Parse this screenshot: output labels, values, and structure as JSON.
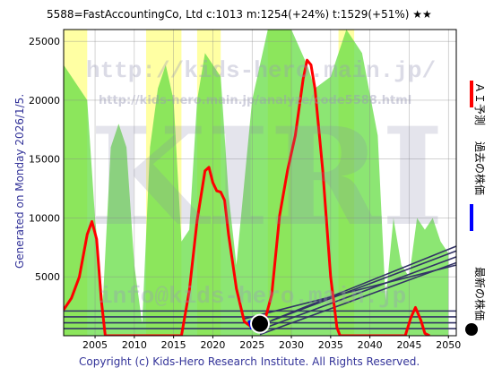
{
  "header": {
    "title": "5588=FastAccountingCo,  Ltd    c:1013  m:1254(+24%)  t:1529(+51%)  ★★"
  },
  "side_note": "Generated on Monday 2026/1/5.",
  "watermarks": {
    "url_big": "http://kids-hero.main.jp/",
    "url_small": "http://kids-hero.main.jp/analyze/code5588.html",
    "logo": "KIRI",
    "email": "info@kids-hero.main.jp"
  },
  "legend": {
    "ai_forecast": "ＡＩ予測",
    "past_price": "過去の株価",
    "latest_price": "最新の株価"
  },
  "copyright": "Copyright (c) Kids-Hero Research Institute. All Rights Reserved.",
  "colors": {
    "forecast_line": "#ff0000",
    "past_line": "#0000ff",
    "latest_marker": "#000000",
    "band_green": "#66dd44",
    "band_yellow": "#ffff99",
    "trend_lines": "#333366"
  },
  "chart_data": {
    "type": "line",
    "xlim": [
      2001,
      2051
    ],
    "ylim": [
      0,
      26000
    ],
    "x_ticks": [
      "2005",
      "2010",
      "2015",
      "2020",
      "2025",
      "2030",
      "2035",
      "2040",
      "2045",
      "2050"
    ],
    "y_ticks": [
      "5000",
      "10000",
      "15000",
      "20000",
      "25000"
    ],
    "grid": true,
    "series": [
      {
        "name": "ＡＩ予測",
        "points": [
          [
            2001,
            2200
          ],
          [
            2002,
            3200
          ],
          [
            2003,
            5000
          ],
          [
            2004,
            8600
          ],
          [
            2004.6,
            9700
          ],
          [
            2005.2,
            8200
          ],
          [
            2005.8,
            3000
          ],
          [
            2006.3,
            0
          ],
          [
            2016,
            0
          ],
          [
            2017,
            3800
          ],
          [
            2018,
            9800
          ],
          [
            2019,
            14000
          ],
          [
            2019.5,
            14300
          ],
          [
            2020,
            13000
          ],
          [
            2020.5,
            12300
          ],
          [
            2021,
            12200
          ],
          [
            2021.5,
            11500
          ],
          [
            2022,
            8600
          ],
          [
            2023,
            4000
          ],
          [
            2024,
            1200
          ],
          [
            2025,
            700
          ],
          [
            2025.5,
            600
          ],
          [
            2026.5,
            1000
          ],
          [
            2027.5,
            3500
          ],
          [
            2028.5,
            10200
          ],
          [
            2029.5,
            14000
          ],
          [
            2030.5,
            17000
          ],
          [
            2031.5,
            21800
          ],
          [
            2032,
            23400
          ],
          [
            2032.5,
            23000
          ],
          [
            2033,
            21000
          ],
          [
            2034,
            14000
          ],
          [
            2035,
            5000
          ],
          [
            2035.8,
            700
          ],
          [
            2036.2,
            0
          ],
          [
            2044.5,
            0
          ],
          [
            2045.2,
            1500
          ],
          [
            2045.8,
            2400
          ],
          [
            2046.5,
            1300
          ],
          [
            2047,
            200
          ],
          [
            2047.6,
            0
          ]
        ]
      },
      {
        "name": "過去の株価",
        "points": [
          [
            2024.6,
            1300
          ],
          [
            2024.9,
            700
          ],
          [
            2025.3,
            1000
          ],
          [
            2025.6,
            900
          ],
          [
            2026.0,
            1013
          ]
        ]
      },
      {
        "name": "最新の株価",
        "points": [
          [
            2026.0,
            1013
          ]
        ]
      }
    ],
    "bands": [
      [
        [
          2001,
          23000
        ],
        [
          2004,
          20000
        ],
        [
          2005,
          10000
        ],
        [
          2006,
          3000
        ],
        [
          2007,
          16000
        ],
        [
          2008,
          18000
        ],
        [
          2009,
          16000
        ],
        [
          2010,
          6000
        ],
        [
          2011,
          1000
        ],
        [
          2012,
          16000
        ],
        [
          2013,
          21000
        ],
        [
          2014,
          23000
        ],
        [
          2015,
          20000
        ],
        [
          2016,
          8000
        ],
        [
          2017,
          9000
        ],
        [
          2018,
          20000
        ],
        [
          2019,
          24000
        ],
        [
          2021,
          22000
        ],
        [
          2022,
          12000
        ],
        [
          2023,
          6000
        ],
        [
          2024,
          13000
        ],
        [
          2025,
          20000
        ],
        [
          2027,
          26000
        ],
        [
          2030,
          26000
        ],
        [
          2032,
          23000
        ],
        [
          2033,
          21000
        ],
        [
          2035,
          22000
        ],
        [
          2036,
          24000
        ],
        [
          2037,
          26000
        ],
        [
          2039,
          24000
        ],
        [
          2041,
          17000
        ],
        [
          2042,
          3000
        ],
        [
          2043,
          10000
        ],
        [
          2044,
          6000
        ],
        [
          2045,
          5000
        ],
        [
          2046,
          10000
        ],
        [
          2047,
          9000
        ],
        [
          2048,
          10000
        ],
        [
          2049,
          8000
        ],
        [
          2050,
          7000
        ]
      ]
    ],
    "horizontal_levels": [
      600,
      1100,
      1600,
      2100
    ],
    "trend_lines": [
      {
        "from": [
          2026.0,
          100
        ],
        "to": [
          2051,
          6200
        ]
      },
      {
        "from": [
          2026.0,
          500
        ],
        "to": [
          2051,
          6700
        ]
      },
      {
        "from": [
          2026.0,
          900
        ],
        "to": [
          2051,
          7200
        ]
      },
      {
        "from": [
          2027.5,
          1300
        ],
        "to": [
          2051,
          7600
        ]
      },
      {
        "from": [
          2023.8,
          1400
        ],
        "to": [
          2051,
          6000
        ]
      }
    ]
  }
}
